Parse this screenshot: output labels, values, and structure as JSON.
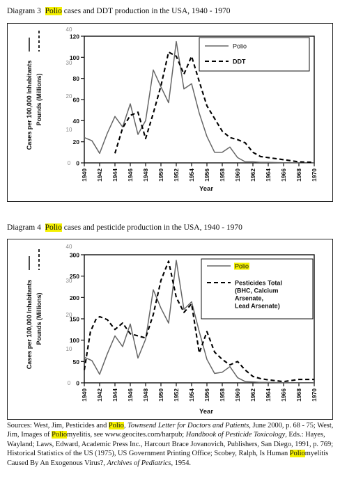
{
  "diagram3": {
    "label": "Diagram 3",
    "highlight": "Polio",
    "title_rest": "cases and DDT production in the USA, 1940 - 1970"
  },
  "diagram4": {
    "label": "Diagram 4",
    "highlight": "Polio",
    "title_rest": "cases and pesticide production in the USA, 1940 - 1970"
  },
  "sources": {
    "parts": [
      {
        "t": "Sources: West, Jim, Pesticides and ",
        "s": ""
      },
      {
        "t": "Polio",
        "s": "hl"
      },
      {
        "t": ", ",
        "s": ""
      },
      {
        "t": "Townsend Letter for Doctors and Patients",
        "s": "i"
      },
      {
        "t": ", June 2000, p. 68 - 75; West, Jim, Images of ",
        "s": ""
      },
      {
        "t": "Polio",
        "s": "hl"
      },
      {
        "t": "myelitis, see www.geocites.com/harpub; ",
        "s": ""
      },
      {
        "t": "Handbook of Pesticide Toxicology",
        "s": "i"
      },
      {
        "t": ", Eds.: Hayes, Wayland; Laws, Edward, Academic Press Inc., Harcourt Brace Jovanovich, Publishers, San Diego, 1991, p. 769; Historical Statistics of the US (1975), US Government Printing Office; Scobey, Ralph, Is Human ",
        "s": ""
      },
      {
        "t": "Polio",
        "s": "hl"
      },
      {
        "t": "myelitis Caused By An Exogenous Virus?, ",
        "s": ""
      },
      {
        "t": "Archives of Pediatrics",
        "s": "i"
      },
      {
        "t": ", 1954.",
        "s": ""
      }
    ]
  },
  "chart_data": [
    {
      "type": "line",
      "xlabel": "Year",
      "ylabel": "Cases per 100,000 Inhabitants",
      "ylabel2": "Pounds (Millions)",
      "x_ticks": [
        "1940",
        "1942",
        "1944",
        "1946",
        "1948",
        "1950",
        "1952",
        "1954",
        "1956",
        "1958",
        "1960",
        "1962",
        "1964",
        "1966",
        "1968",
        "1970"
      ],
      "y_ticks": [
        "0",
        "20",
        "40",
        "60",
        "80",
        "100",
        "120"
      ],
      "y_ticks2": [
        "0",
        "10",
        "20",
        "30",
        "40"
      ],
      "xlim": [
        1940,
        1970
      ],
      "ylim": [
        0,
        120
      ],
      "series": [
        {
          "name": "Polio",
          "style": "solid",
          "x": [
            1940,
            1941,
            1942,
            1943,
            1944,
            1945,
            1946,
            1947,
            1948,
            1949,
            1950,
            1951,
            1952,
            1953,
            1954,
            1955,
            1956,
            1957,
            1958,
            1959,
            1960,
            1961,
            1962,
            1963,
            1964,
            1966,
            1968,
            1970
          ],
          "y": [
            24,
            21,
            9,
            28,
            44,
            34,
            56,
            27,
            40,
            88,
            72,
            57,
            115,
            70,
            75,
            47,
            25,
            10,
            10,
            15,
            5,
            1,
            1,
            0.5,
            0.5,
            0.2,
            0.2,
            0.2
          ]
        },
        {
          "name": "DDT",
          "style": "dashed",
          "x": [
            1944,
            1945,
            1946,
            1947,
            1948,
            1949,
            1950,
            1951,
            1952,
            1953,
            1954,
            1955,
            1956,
            1957,
            1958,
            1959,
            1960,
            1961,
            1962,
            1963,
            1964,
            1966,
            1968,
            1970
          ],
          "y": [
            9,
            33,
            45,
            48,
            23,
            47,
            73,
            105,
            101,
            84,
            101,
            77,
            54,
            42,
            30,
            24,
            22,
            19,
            10,
            6,
            5,
            3,
            1,
            0.5
          ]
        }
      ]
    },
    {
      "type": "line",
      "xlabel": "Year",
      "ylabel": "Cases per 100,000 Inhabitants",
      "ylabel2": "Pounds (Millions)",
      "x_ticks": [
        "1940",
        "1942",
        "1944",
        "1946",
        "1948",
        "1950",
        "1952",
        "1954",
        "1956",
        "1958",
        "1960",
        "1962",
        "1964",
        "1966",
        "1968",
        "1970"
      ],
      "y_ticks": [
        "0",
        "50",
        "100",
        "150",
        "200",
        "250",
        "300"
      ],
      "y_ticks2": [
        "0",
        "10",
        "20",
        "30",
        "40"
      ],
      "xlim": [
        1940,
        1970
      ],
      "ylim": [
        0,
        300
      ],
      "series": [
        {
          "name": "Polio",
          "style": "solid",
          "x": [
            1940,
            1941,
            1942,
            1943,
            1944,
            1945,
            1946,
            1947,
            1948,
            1949,
            1950,
            1951,
            1952,
            1953,
            1954,
            1955,
            1956,
            1957,
            1958,
            1959,
            1960,
            1961,
            1962,
            1963,
            1964,
            1966,
            1968,
            1970
          ],
          "y": [
            60,
            52,
            20,
            68,
            110,
            85,
            138,
            58,
            102,
            218,
            175,
            140,
            287,
            172,
            190,
            120,
            55,
            22,
            25,
            38,
            12,
            3,
            2,
            1,
            1,
            0.5,
            0.5,
            0.5
          ]
        },
        {
          "name": "Pesticides Total (BHC, Calcium Arsenate, Lead Arsenate)",
          "style": "dashed",
          "x": [
            1940,
            1940.8,
            1941.5,
            1942,
            1943,
            1944,
            1945,
            1946,
            1947,
            1948,
            1949,
            1950,
            1951,
            1952,
            1953,
            1954,
            1955,
            1956,
            1957,
            1958,
            1959,
            1960,
            1961,
            1962,
            1963,
            1964,
            1966,
            1968,
            1970
          ],
          "y": [
            30,
            120,
            148,
            155,
            148,
            125,
            140,
            115,
            110,
            105,
            160,
            240,
            285,
            200,
            165,
            185,
            70,
            120,
            72,
            55,
            42,
            50,
            30,
            15,
            10,
            7,
            3,
            8,
            8
          ]
        }
      ]
    }
  ]
}
